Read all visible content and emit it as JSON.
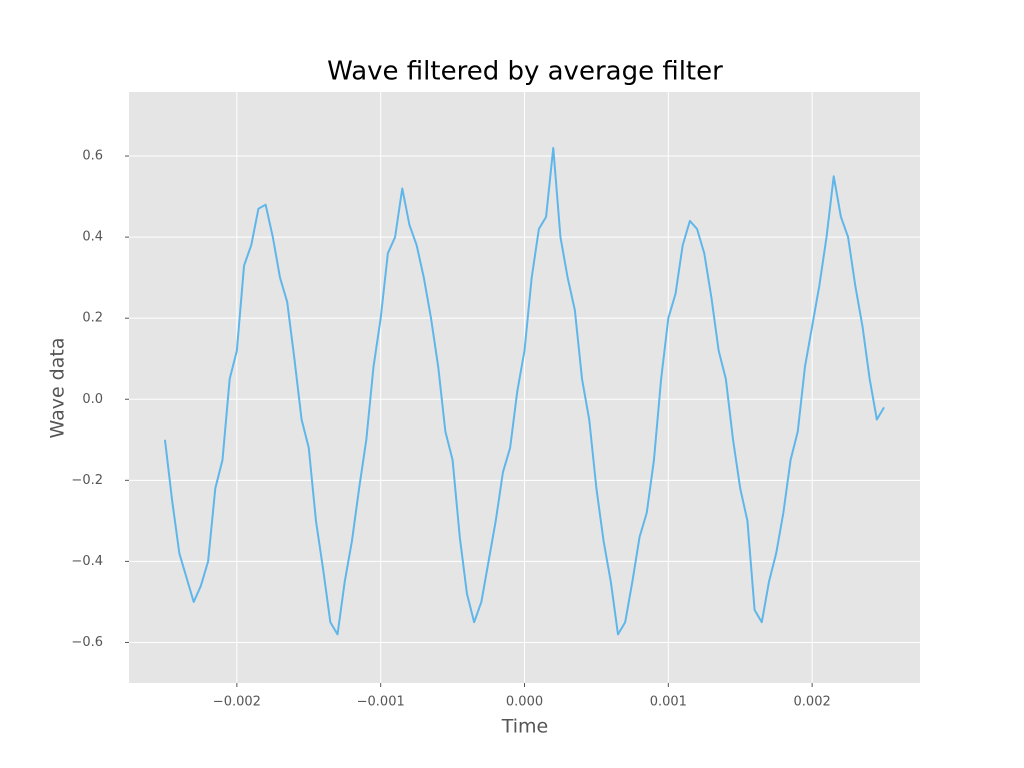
{
  "chart_data": {
    "type": "line",
    "title": "Wave filtered by average filter",
    "x_label": "Time",
    "y_label": "Wave data",
    "x": [
      -0.0025,
      -0.00245,
      -0.0024,
      -0.00235,
      -0.0023,
      -0.00225,
      -0.0022,
      -0.00215,
      -0.0021,
      -0.00205,
      -0.002,
      -0.00195,
      -0.0019,
      -0.00185,
      -0.0018,
      -0.00175,
      -0.0017,
      -0.00165,
      -0.0016,
      -0.00155,
      -0.0015,
      -0.00145,
      -0.0014,
      -0.00135,
      -0.0013,
      -0.00125,
      -0.0012,
      -0.00115,
      -0.0011,
      -0.00105,
      -0.001,
      -0.00095,
      -0.0009,
      -0.00085,
      -0.0008,
      -0.00075,
      -0.0007,
      -0.00065,
      -0.0006,
      -0.00055,
      -0.0005,
      -0.00045,
      -0.0004,
      -0.00035,
      -0.0003,
      -0.00025,
      -0.0002,
      -0.00015,
      -0.0001,
      -5e-05,
      0,
      5e-05,
      0.0001,
      0.00015,
      0.0002,
      0.00025,
      0.0003,
      0.00035,
      0.0004,
      0.00045,
      0.0005,
      0.00055,
      0.0006,
      0.00065,
      0.0007,
      0.00075,
      0.0008,
      0.00085,
      0.0009,
      0.00095,
      0.001,
      0.00105,
      0.0011,
      0.00115,
      0.0012,
      0.00125,
      0.0013,
      0.00135,
      0.0014,
      0.00145,
      0.0015,
      0.00155,
      0.0016,
      0.00165,
      0.0017,
      0.00175,
      0.0018,
      0.00185,
      0.0019,
      0.00195,
      0.002,
      0.00205,
      0.0021,
      0.00215,
      0.0022,
      0.00225,
      0.0023,
      0.00235,
      0.0024,
      0.00245,
      0.0025
    ],
    "series": [
      {
        "color": "#5fb6ea",
        "values": [
          -0.1,
          -0.25,
          -0.38,
          -0.44,
          -0.5,
          -0.46,
          -0.4,
          -0.22,
          -0.15,
          0.05,
          0.12,
          0.33,
          0.38,
          0.47,
          0.48,
          0.4,
          0.3,
          0.24,
          0.1,
          -0.05,
          -0.12,
          -0.3,
          -0.42,
          -0.55,
          -0.58,
          -0.45,
          -0.35,
          -0.22,
          -0.1,
          0.08,
          0.2,
          0.36,
          0.4,
          0.52,
          0.43,
          0.38,
          0.3,
          0.2,
          0.08,
          -0.08,
          -0.15,
          -0.34,
          -0.48,
          -0.55,
          -0.5,
          -0.4,
          -0.3,
          -0.18,
          -0.12,
          0.02,
          0.12,
          0.3,
          0.42,
          0.45,
          0.62,
          0.4,
          0.3,
          0.22,
          0.05,
          -0.05,
          -0.22,
          -0.35,
          -0.45,
          -0.58,
          -0.55,
          -0.45,
          -0.34,
          -0.28,
          -0.15,
          0.05,
          0.2,
          0.26,
          0.38,
          0.44,
          0.42,
          0.36,
          0.25,
          0.12,
          0.05,
          -0.1,
          -0.22,
          -0.3,
          -0.52,
          -0.55,
          -0.45,
          -0.38,
          -0.28,
          -0.15,
          -0.08,
          0.08,
          0.18,
          0.28,
          0.4,
          0.55,
          0.45,
          0.4,
          0.28,
          0.18,
          0.05,
          -0.05,
          -0.02
        ]
      }
    ],
    "xlim": [
      -0.00275,
      0.00275
    ],
    "ylim": [
      -0.7,
      0.758
    ],
    "xticks": [
      {
        "value": -0.002,
        "label": "−0.002"
      },
      {
        "value": -0.001,
        "label": "−0.001"
      },
      {
        "value": 0,
        "label": "0.000"
      },
      {
        "value": 0.001,
        "label": "0.001"
      },
      {
        "value": 0.002,
        "label": "0.002"
      }
    ],
    "yticks": [
      {
        "value": -0.6,
        "label": "−0.6"
      },
      {
        "value": -0.4,
        "label": "−0.4"
      },
      {
        "value": -0.2,
        "label": "−0.2"
      },
      {
        "value": 0,
        "label": "0.0"
      },
      {
        "value": 0.2,
        "label": "0.2"
      },
      {
        "value": 0.4,
        "label": "0.4"
      },
      {
        "value": 0.6,
        "label": "0.6"
      }
    ],
    "grid": true
  }
}
